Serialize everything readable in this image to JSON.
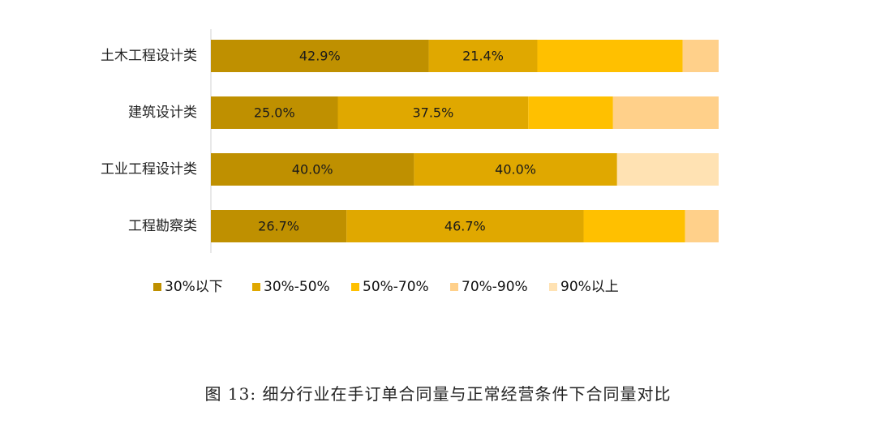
{
  "caption": "图 13: 细分行业在手订单合同量与正常经营条件下合同量对比",
  "chart_data": {
    "type": "bar",
    "orientation": "horizontal",
    "stacked": true,
    "xlim": [
      0,
      100
    ],
    "grid": false,
    "legend_position": "bottom",
    "categories": [
      "土木工程设计类",
      "建筑设计类",
      "工业工程设计类",
      "工程勘察类"
    ],
    "series": [
      {
        "name": "30%以下",
        "color": "#BF9000",
        "values": [
          42.9,
          25.0,
          40.0,
          26.7
        ],
        "labels": [
          "42.9%",
          "25.0%",
          "40.0%",
          "26.7%"
        ]
      },
      {
        "name": "30%-50%",
        "color": "#E0A800",
        "values": [
          21.4,
          37.5,
          40.0,
          46.7
        ],
        "labels": [
          "21.4%",
          "37.5%",
          "40.0%",
          "46.7%"
        ]
      },
      {
        "name": "50%-70%",
        "color": "#FFC000",
        "values": [
          28.6,
          16.7,
          0,
          20.0
        ],
        "labels": [
          "",
          "",
          "",
          ""
        ]
      },
      {
        "name": "70%-90%",
        "color": "#FFD08A",
        "values": [
          7.1,
          20.8,
          0,
          6.6
        ],
        "labels": [
          "",
          "",
          "",
          ""
        ]
      },
      {
        "name": "90%以上",
        "color": "#FFE2B3",
        "values": [
          0,
          0,
          20.0,
          0
        ],
        "labels": [
          "",
          "",
          "",
          ""
        ]
      }
    ]
  }
}
